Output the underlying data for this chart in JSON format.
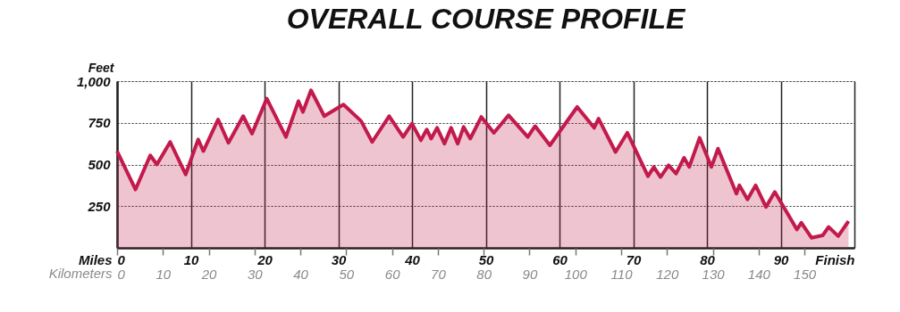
{
  "chart_data": {
    "type": "area",
    "title": "OVERALL COURSE PROFILE",
    "xlabel": "Miles",
    "x2label": "Kilometers",
    "ylabel": "Feet",
    "x": [
      0,
      2.5,
      4.5,
      5.4,
      7.2,
      9.3,
      11.0,
      11.7,
      13.7,
      15.1,
      17.1,
      18.3,
      20.3,
      22.9,
      24.6,
      25.2,
      26.3,
      28.1,
      30.7,
      33.1,
      34.6,
      36.9,
      38.8,
      40.0,
      41.2,
      42.0,
      42.6,
      43.4,
      44.4,
      45.3,
      46.2,
      47.0,
      47.9,
      49.4,
      51.1,
      53.1,
      55.7,
      56.7,
      58.7,
      62.4,
      64.7,
      65.3,
      67.6,
      69.2,
      72.0,
      72.8,
      73.7,
      74.8,
      75.8,
      76.9,
      77.6,
      79.0,
      80.6,
      81.5,
      84.0,
      84.4,
      85.5,
      86.6,
      88.0,
      89.2,
      92.2,
      92.8,
      94.2,
      95.7,
      96.5,
      97.8,
      99.2
    ],
    "series": [
      {
        "color": "#c21a4c",
        "values": [
          580,
          350,
          555,
          500,
          635,
          440,
          650,
          580,
          770,
          630,
          790,
          685,
          895,
          665,
          880,
          815,
          945,
          790,
          860,
          760,
          635,
          790,
          665,
          745,
          645,
          710,
          655,
          720,
          625,
          720,
          625,
          725,
          655,
          785,
          690,
          795,
          665,
          730,
          615,
          845,
          720,
          775,
          575,
          690,
          430,
          485,
          425,
          495,
          445,
          540,
          485,
          660,
          485,
          595,
          325,
          375,
          290,
          375,
          245,
          335,
          110,
          150,
          60,
          75,
          125,
          70,
          160
        ]
      }
    ],
    "xlim": [
      0,
      100
    ],
    "xticks": [
      0,
      10,
      20,
      30,
      40,
      50,
      60,
      70,
      80,
      90,
      {
        "value": 100,
        "label": "Finish"
      }
    ],
    "x2lim": [
      0,
      160.9
    ],
    "x2ticks": [
      0,
      10,
      20,
      30,
      40,
      50,
      60,
      70,
      80,
      90,
      100,
      110,
      120,
      130,
      140,
      150
    ],
    "ylim": [
      0,
      1000
    ],
    "yticks": [
      250,
      500,
      750,
      {
        "value": 1000,
        "label": "1,000"
      }
    ],
    "grid": true
  }
}
